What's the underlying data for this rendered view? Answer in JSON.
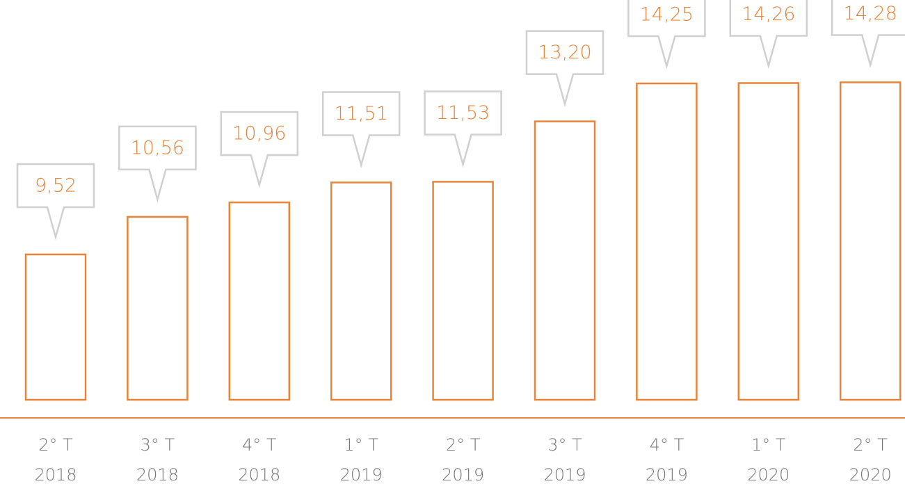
{
  "chart_data": {
    "type": "bar",
    "categories": [
      [
        "2° T",
        "2018"
      ],
      [
        "3° T",
        "2018"
      ],
      [
        "4° T",
        "2018"
      ],
      [
        "1° T",
        "2019"
      ],
      [
        "2° T",
        "2019"
      ],
      [
        "3° T",
        "2019"
      ],
      [
        "4° T",
        "2019"
      ],
      [
        "1° T",
        "2020"
      ],
      [
        "2° T",
        "2020"
      ]
    ],
    "values": [
      9.52,
      10.56,
      10.96,
      11.51,
      11.53,
      13.2,
      14.25,
      14.26,
      14.28
    ],
    "value_labels": [
      "9,52",
      "10,56",
      "10,96",
      "11,51",
      "11,53",
      "13,20",
      "14,25",
      "14,26",
      "14,28"
    ],
    "color": "#e8843a",
    "ylim": [
      5.5,
      15
    ]
  }
}
